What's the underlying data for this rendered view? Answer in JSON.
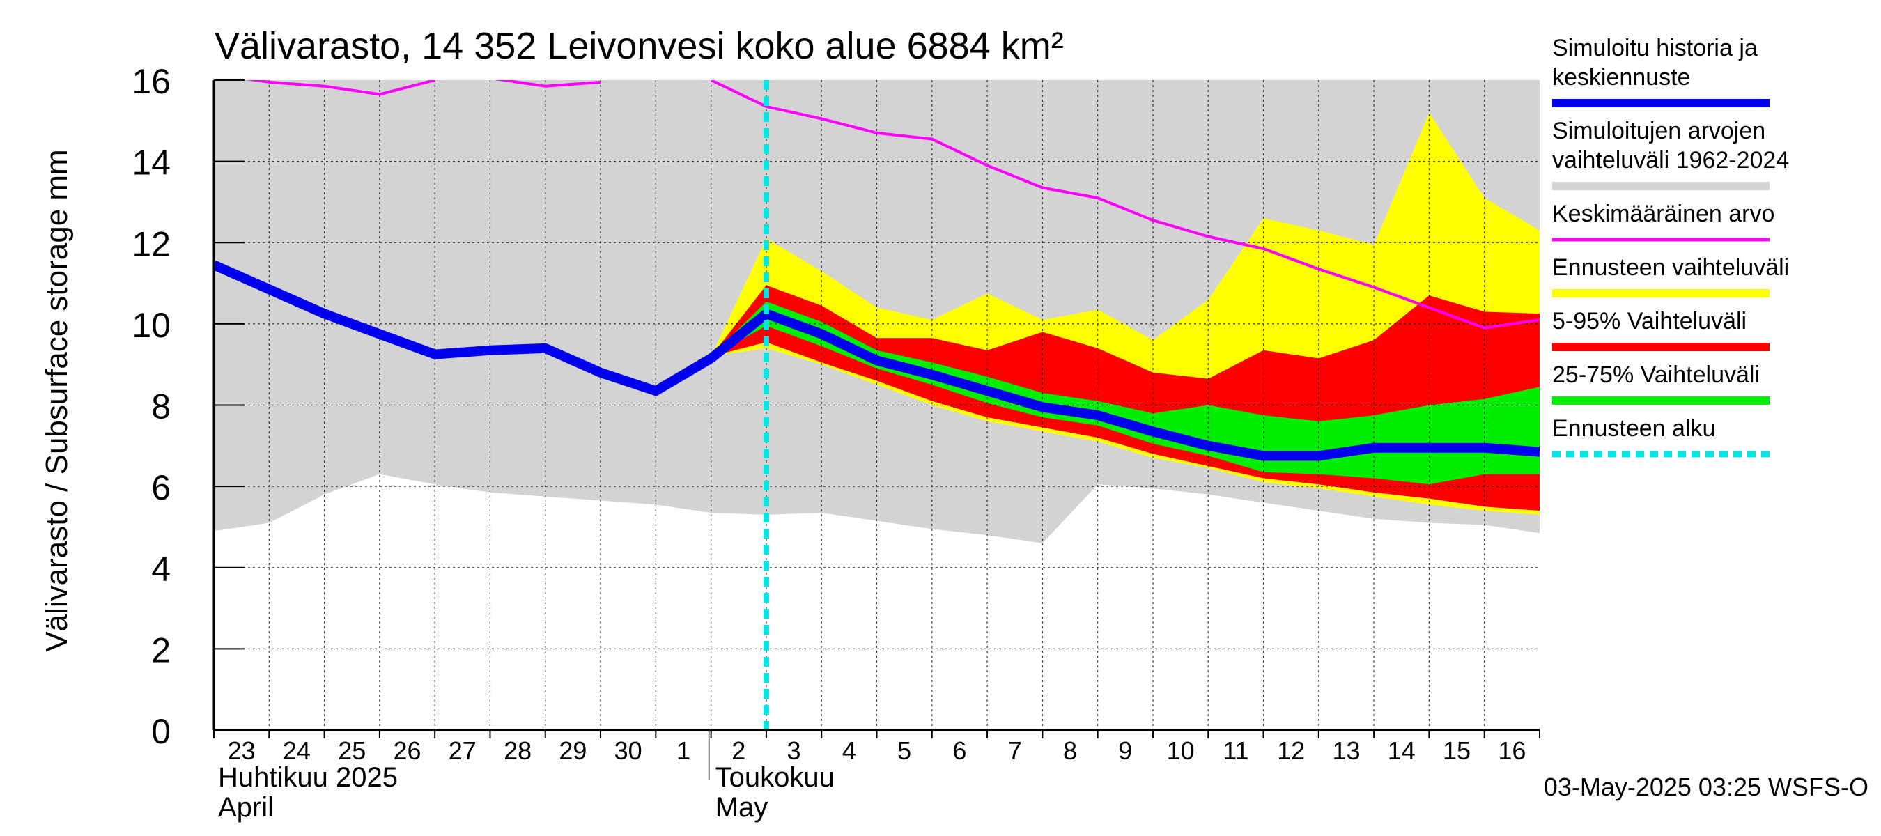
{
  "chart_data": {
    "type": "area",
    "title": "Välivarasto, 14 352 Leivonvesi koko alue 6884 km²",
    "ylabel": "Välivarasto / Subsurface storage  mm",
    "ylim": [
      0,
      16
    ],
    "yticks": [
      0,
      2,
      4,
      6,
      8,
      10,
      12,
      14,
      16
    ],
    "grid": true,
    "legend_position": "right",
    "x_dates": [
      "2025-04-23",
      "2025-04-24",
      "2025-04-25",
      "2025-04-26",
      "2025-04-27",
      "2025-04-28",
      "2025-04-29",
      "2025-04-30",
      "2025-05-01",
      "2025-05-02",
      "2025-05-03",
      "2025-05-04",
      "2025-05-05",
      "2025-05-06",
      "2025-05-07",
      "2025-05-08",
      "2025-05-09",
      "2025-05-10",
      "2025-05-11",
      "2025-05-12",
      "2025-05-13",
      "2025-05-14",
      "2025-05-15",
      "2025-05-16",
      "2025-05-17"
    ],
    "xlim": [
      "2025-04-23",
      "2025-05-17"
    ],
    "x_tick_labels": [
      "23",
      "24",
      "25",
      "26",
      "27",
      "28",
      "29",
      "30",
      "1",
      "2",
      "3",
      "4",
      "5",
      "6",
      "7",
      "8",
      "9",
      "10",
      "11",
      "12",
      "13",
      "14",
      "15",
      "16"
    ],
    "month_labels": [
      {
        "fi": "Huhtikuu  2025",
        "en": "April",
        "start": "2025-04-23"
      },
      {
        "fi": "Toukokuu",
        "en": "May",
        "start": "2025-05-02"
      }
    ],
    "forecast_start": "2025-05-03",
    "series": [
      {
        "name": "Simuloitujen arvojen vaihteluväli 1962-2024",
        "kind": "band",
        "color": "#d3d3d3",
        "lower": [
          4.9,
          5.1,
          5.8,
          6.3,
          6.05,
          5.85,
          5.75,
          5.65,
          5.55,
          5.35,
          5.3,
          5.35,
          5.15,
          4.95,
          4.8,
          4.6,
          6.05,
          5.95,
          5.8,
          5.6,
          5.4,
          5.2,
          5.1,
          5.05,
          4.85
        ],
        "upper": [
          16,
          16,
          16,
          16,
          16,
          16,
          16,
          16,
          16,
          16,
          16,
          16,
          16,
          16,
          16,
          16,
          16,
          16,
          16,
          16,
          16,
          16,
          16,
          16,
          16
        ]
      },
      {
        "name": "Ennusteen vaihteluväli",
        "kind": "band",
        "color": "#ffff00",
        "from": "2025-05-02",
        "lower": [
          9.2,
          9.4,
          9.0,
          8.5,
          8.0,
          7.6,
          7.35,
          7.1,
          6.7,
          6.45,
          6.1,
          5.95,
          5.75,
          5.55,
          5.4,
          5.3
        ],
        "upper": [
          9.2,
          12.1,
          11.3,
          10.4,
          10.1,
          10.75,
          10.1,
          10.35,
          9.6,
          10.6,
          12.6,
          12.3,
          11.95,
          15.2,
          13.1,
          12.3
        ]
      },
      {
        "name": "5-95% Vaihteluväli",
        "kind": "band",
        "color": "#ff0000",
        "from": "2025-05-02",
        "lower": [
          9.2,
          9.55,
          9.05,
          8.6,
          8.1,
          7.7,
          7.45,
          7.2,
          6.8,
          6.5,
          6.2,
          6.05,
          5.85,
          5.7,
          5.5,
          5.4
        ],
        "upper": [
          9.2,
          10.95,
          10.45,
          9.65,
          9.65,
          9.35,
          9.8,
          9.4,
          8.8,
          8.65,
          9.35,
          9.15,
          9.6,
          10.7,
          10.3,
          10.25
        ]
      },
      {
        "name": "25-75% Vaihteluväli",
        "kind": "band",
        "color": "#00ee00",
        "from": "2025-05-02",
        "lower": [
          9.2,
          9.95,
          9.45,
          8.9,
          8.5,
          8.05,
          7.7,
          7.5,
          7.05,
          6.75,
          6.35,
          6.3,
          6.2,
          6.05,
          6.3,
          6.3
        ],
        "upper": [
          9.2,
          10.55,
          10.05,
          9.35,
          9.05,
          8.7,
          8.3,
          8.1,
          7.8,
          8.0,
          7.75,
          7.6,
          7.75,
          8.0,
          8.15,
          8.45
        ]
      },
      {
        "name": "Keskimääräinen arvo",
        "kind": "line",
        "color": "#ff00ff",
        "segments": [
          {
            "from": "2025-04-23",
            "values": [
              16.15,
              15.95,
              15.85,
              15.65,
              16.0
            ]
          },
          {
            "from": "2025-04-28",
            "values": [
              16.05,
              15.85,
              15.95
            ]
          },
          {
            "from": "2025-05-02",
            "values": [
              16.0,
              15.35,
              15.05,
              14.7,
              14.55,
              13.9,
              13.35,
              13.1,
              12.55,
              12.15,
              11.85,
              11.35,
              10.9,
              10.4,
              9.9,
              10.1
            ]
          }
        ]
      },
      {
        "name": "Simuloitu historia ja keskiennuste",
        "kind": "line",
        "color": "#0000ee",
        "values": [
          11.45,
          10.85,
          10.25,
          9.75,
          9.25,
          9.35,
          9.4,
          8.8,
          8.35,
          9.15,
          10.25,
          9.75,
          9.1,
          8.75,
          8.35,
          7.95,
          7.75,
          7.35,
          7.0,
          6.75,
          6.75,
          6.95,
          6.95,
          6.95,
          6.85
        ]
      }
    ],
    "legend": [
      {
        "label": "Simuloitu historia ja keskiennuste",
        "color": "#0000ee",
        "style": "thick"
      },
      {
        "label": "Simuloitujen arvojen vaihteluväli 1962-2024",
        "color": "#d3d3d3",
        "style": "thick"
      },
      {
        "label": "Keskimääräinen arvo",
        "color": "#ff00ff",
        "style": "thin"
      },
      {
        "label": "Ennusteen vaihteluväli",
        "color": "#ffff00",
        "style": "thick"
      },
      {
        "label": "5-95% Vaihteluväli",
        "color": "#ff0000",
        "style": "thick"
      },
      {
        "label": "25-75% Vaihteluväli",
        "color": "#00ee00",
        "style": "thick"
      },
      {
        "label": "Ennusteen alku",
        "color": "#00e5e5",
        "style": "dashed"
      }
    ],
    "forecast_line_color": "#00e5e5",
    "footer": "03-May-2025 03:25 WSFS-O"
  }
}
